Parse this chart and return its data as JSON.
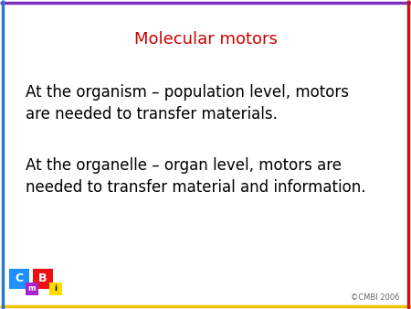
{
  "title": "Molecular motors",
  "title_color": "#cc0000",
  "title_fontsize": 13,
  "body_text1": "At the organism – population level, motors\nare needed to transfer materials.",
  "body_text2": "At the organelle – organ level, motors are\nneeded to transfer material and information.",
  "body_fontsize": 12,
  "body_color": "#000000",
  "background_color": "#ffffff",
  "border_top_color": "#7b2fbe",
  "border_bottom_color": "#f5c400",
  "border_left_color": "#2979c8",
  "border_right_color": "#cc1111",
  "copyright_text": "©CMBI 2006",
  "copyright_color": "#666666",
  "copyright_fontsize": 6,
  "logo_C_bg": "#1e90ff",
  "logo_C_text": "C",
  "logo_m_bg": "#aa22cc",
  "logo_m_text": "m",
  "logo_B_bg": "#ee1111",
  "logo_B_text": "B",
  "logo_i_bg": "#ffdd00",
  "logo_i_text": "i"
}
